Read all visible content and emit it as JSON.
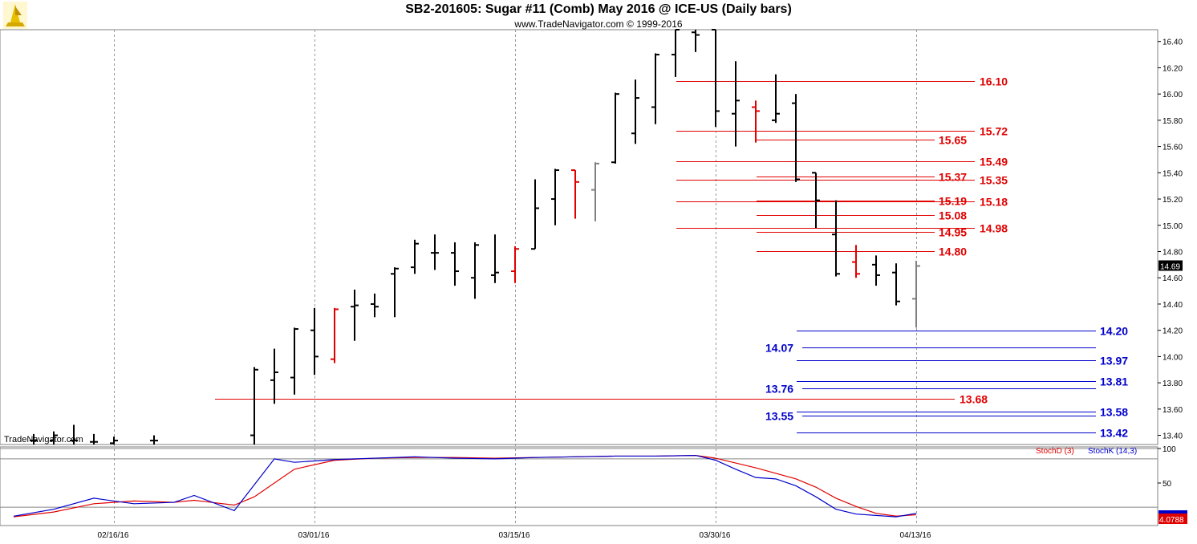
{
  "header": {
    "title": "SB2-201605:  Sugar #11 (Comb) May 2016 @ ICE-US  (Daily bars)",
    "subtitle": "www.TradeNavigator.com © 1999-2016",
    "watermark": "TradeNavigator.com"
  },
  "colors": {
    "up": "#000000",
    "red": "#e00000",
    "green": "#00cc00",
    "gray": "#808080",
    "resistance": "#e00000",
    "support": "#0000cc",
    "stochK": "#0000cc",
    "stochD": "#e00000"
  },
  "chart_data": {
    "type": "ohlc",
    "price_axis": {
      "ylim": [
        13.33,
        16.49
      ],
      "ticks": [
        "16.40",
        "16.20",
        "16.00",
        "15.80",
        "15.60",
        "15.40",
        "15.20",
        "15.00",
        "14.80",
        "14.60",
        "14.40",
        "14.20",
        "14.00",
        "13.80",
        "13.60",
        "13.40"
      ]
    },
    "date_axis": {
      "labels": [
        {
          "label": "02/16/16",
          "day": 5
        },
        {
          "label": "03/01/16",
          "day": 15
        },
        {
          "label": "03/15/16",
          "day": 25
        },
        {
          "label": "03/30/16",
          "day": 35
        },
        {
          "label": "04/13/16",
          "day": 45
        }
      ]
    },
    "last_price": "14.69",
    "bars": [
      {
        "d": 1,
        "o": 13.36,
        "h": 13.41,
        "l": 13.33,
        "c": 13.36,
        "color": "up"
      },
      {
        "d": 2,
        "o": 13.36,
        "h": 13.43,
        "l": 13.33,
        "c": 13.4,
        "color": "up"
      },
      {
        "d": 3,
        "o": 13.36,
        "h": 13.48,
        "l": 13.33,
        "c": 13.36,
        "color": "up"
      },
      {
        "d": 4,
        "o": 13.35,
        "h": 13.41,
        "l": 13.33,
        "c": 13.35,
        "color": "up"
      },
      {
        "d": 5,
        "o": 13.34,
        "h": 13.39,
        "l": 13.33,
        "c": 13.36,
        "color": "up"
      },
      {
        "d": 7,
        "o": 13.36,
        "h": 13.4,
        "l": 13.33,
        "c": 13.36,
        "color": "up"
      },
      {
        "d": 12,
        "o": 13.4,
        "h": 13.92,
        "l": 13.33,
        "c": 13.9,
        "color": "up"
      },
      {
        "d": 13,
        "o": 13.82,
        "h": 14.06,
        "l": 13.64,
        "c": 13.88,
        "color": "up"
      },
      {
        "d": 14,
        "o": 13.84,
        "h": 14.22,
        "l": 13.71,
        "c": 14.21,
        "color": "up"
      },
      {
        "d": 15,
        "o": 14.2,
        "h": 14.37,
        "l": 13.86,
        "c": 14.0,
        "color": "up"
      },
      {
        "d": 16,
        "o": 13.98,
        "h": 14.37,
        "l": 13.95,
        "c": 14.36,
        "color": "red"
      },
      {
        "d": 17,
        "o": 14.38,
        "h": 14.51,
        "l": 14.12,
        "c": 14.39,
        "color": "up"
      },
      {
        "d": 18,
        "o": 14.4,
        "h": 14.48,
        "l": 14.3,
        "c": 14.38,
        "color": "up"
      },
      {
        "d": 19,
        "o": 14.63,
        "h": 14.68,
        "l": 14.3,
        "c": 14.67,
        "color": "up"
      },
      {
        "d": 20,
        "o": 14.68,
        "h": 14.89,
        "l": 14.63,
        "c": 14.86,
        "color": "up"
      },
      {
        "d": 21,
        "o": 14.79,
        "h": 14.93,
        "l": 14.66,
        "c": 14.79,
        "color": "up"
      },
      {
        "d": 22,
        "o": 14.79,
        "h": 14.87,
        "l": 14.54,
        "c": 14.65,
        "color": "up"
      },
      {
        "d": 23,
        "o": 14.6,
        "h": 14.87,
        "l": 14.44,
        "c": 14.85,
        "color": "up"
      },
      {
        "d": 24,
        "o": 14.62,
        "h": 14.93,
        "l": 14.56,
        "c": 14.64,
        "color": "up"
      },
      {
        "d": 25,
        "o": 14.65,
        "h": 14.84,
        "l": 14.56,
        "c": 14.82,
        "color": "red"
      },
      {
        "d": 26,
        "o": 14.82,
        "h": 15.35,
        "l": 14.82,
        "c": 15.13,
        "color": "up"
      },
      {
        "d": 27,
        "o": 15.2,
        "h": 15.43,
        "l": 15.0,
        "c": 15.42,
        "color": "up"
      },
      {
        "d": 28,
        "o": 15.42,
        "h": 15.42,
        "l": 15.05,
        "c": 15.33,
        "color": "red"
      },
      {
        "d": 29,
        "o": 15.27,
        "h": 15.48,
        "l": 15.03,
        "c": 15.47,
        "color": "gray"
      },
      {
        "d": 30,
        "o": 15.48,
        "h": 16.01,
        "l": 15.47,
        "c": 16.0,
        "color": "up"
      },
      {
        "d": 31,
        "o": 15.7,
        "h": 16.11,
        "l": 15.62,
        "c": 15.97,
        "color": "up"
      },
      {
        "d": 32,
        "o": 15.9,
        "h": 16.31,
        "l": 15.77,
        "c": 16.3,
        "color": "up"
      },
      {
        "d": 33,
        "o": 16.3,
        "h": 16.49,
        "l": 16.13,
        "c": 16.49,
        "color": "up"
      },
      {
        "d": 34,
        "o": 16.47,
        "h": 16.49,
        "l": 16.32,
        "c": 16.45,
        "color": "up"
      },
      {
        "d": 35,
        "o": 16.49,
        "h": 16.49,
        "l": 15.75,
        "c": 15.87,
        "color": "up"
      },
      {
        "d": 36,
        "o": 15.85,
        "h": 16.25,
        "l": 15.6,
        "c": 15.95,
        "color": "up"
      },
      {
        "d": 37,
        "o": 15.9,
        "h": 15.95,
        "l": 15.63,
        "c": 15.87,
        "color": "red"
      },
      {
        "d": 38,
        "o": 15.8,
        "h": 16.15,
        "l": 15.78,
        "c": 15.85,
        "color": "up"
      },
      {
        "d": 39,
        "o": 15.93,
        "h": 16.0,
        "l": 15.33,
        "c": 15.35,
        "color": "up"
      },
      {
        "d": 40,
        "o": 15.4,
        "h": 15.4,
        "l": 14.98,
        "c": 15.19,
        "color": "up"
      },
      {
        "d": 41,
        "o": 14.93,
        "h": 15.19,
        "l": 14.61,
        "c": 14.63,
        "color": "up"
      },
      {
        "d": 42,
        "o": 14.72,
        "h": 14.85,
        "l": 14.6,
        "c": 14.63,
        "color": "red"
      },
      {
        "d": 43,
        "o": 14.7,
        "h": 14.77,
        "l": 14.54,
        "c": 14.62,
        "color": "up"
      },
      {
        "d": 44,
        "o": 14.64,
        "h": 14.71,
        "l": 14.39,
        "c": 14.42,
        "color": "up"
      },
      {
        "d": 45,
        "o": 14.44,
        "h": 14.73,
        "l": 14.22,
        "c": 14.69,
        "color": "gray"
      }
    ],
    "resistance_levels": [
      {
        "value": 16.1,
        "label": "16.10",
        "start_day": 34
      },
      {
        "value": 15.72,
        "label": "15.72",
        "start_day": 34
      },
      {
        "value": 15.65,
        "label": "15.65",
        "start_day": 38
      },
      {
        "value": 15.49,
        "label": "15.49",
        "start_day": 34
      },
      {
        "value": 15.37,
        "label": "15.37",
        "start_day": 38
      },
      {
        "value": 15.35,
        "label": "15.35",
        "start_day": 34
      },
      {
        "value": 15.19,
        "label": "15.19",
        "start_day": 38
      },
      {
        "value": 15.18,
        "label": "15.18",
        "start_day": 34
      },
      {
        "value": 15.08,
        "label": "15.08",
        "start_day": 38
      },
      {
        "value": 14.98,
        "label": "14.98",
        "start_day": 34
      },
      {
        "value": 14.95,
        "label": "14.95",
        "start_day": 38
      },
      {
        "value": 14.8,
        "label": "14.80",
        "start_day": 38
      },
      {
        "value": 13.68,
        "label": "13.68",
        "start_day": 10
      }
    ],
    "support_levels": [
      {
        "value": 14.2,
        "label": "14.20",
        "side": "right"
      },
      {
        "value": 14.07,
        "label": "14.07",
        "side": "left"
      },
      {
        "value": 13.97,
        "label": "13.97",
        "side": "right"
      },
      {
        "value": 13.81,
        "label": "13.81",
        "side": "right"
      },
      {
        "value": 13.76,
        "label": "13.76",
        "side": "left"
      },
      {
        "value": 13.58,
        "label": "13.58",
        "side": "right"
      },
      {
        "value": 13.55,
        "label": "13.55",
        "side": "left"
      },
      {
        "value": 13.42,
        "label": "13.42",
        "side": "right"
      }
    ],
    "stochastic": {
      "ylim": [
        0,
        100
      ],
      "ticks": [
        "100",
        "50"
      ],
      "legend_d": "StochD (3)",
      "legend_k": "StochK (14,3)",
      "last_d": "4.0788",
      "k": [
        [
          0,
          2
        ],
        [
          2,
          12
        ],
        [
          4,
          28
        ],
        [
          6,
          20
        ],
        [
          8,
          22
        ],
        [
          9,
          32
        ],
        [
          11,
          10
        ],
        [
          13,
          85
        ],
        [
          14,
          80
        ],
        [
          16,
          84
        ],
        [
          18,
          86
        ],
        [
          20,
          88
        ],
        [
          22,
          86
        ],
        [
          24,
          85
        ],
        [
          26,
          87
        ],
        [
          28,
          88
        ],
        [
          30,
          89
        ],
        [
          32,
          89
        ],
        [
          34,
          90
        ],
        [
          35,
          83
        ],
        [
          36,
          70
        ],
        [
          37,
          58
        ],
        [
          38,
          56
        ],
        [
          39,
          46
        ],
        [
          40,
          30
        ],
        [
          41,
          12
        ],
        [
          42,
          5
        ],
        [
          44,
          1
        ],
        [
          45,
          6
        ]
      ],
      "d": [
        [
          0,
          1
        ],
        [
          2,
          8
        ],
        [
          4,
          20
        ],
        [
          6,
          24
        ],
        [
          8,
          22
        ],
        [
          9,
          25
        ],
        [
          11,
          18
        ],
        [
          12,
          30
        ],
        [
          14,
          70
        ],
        [
          16,
          83
        ],
        [
          18,
          86
        ],
        [
          20,
          87
        ],
        [
          22,
          87
        ],
        [
          24,
          86
        ],
        [
          26,
          87
        ],
        [
          28,
          88
        ],
        [
          30,
          89
        ],
        [
          32,
          89
        ],
        [
          34,
          90
        ],
        [
          35,
          86
        ],
        [
          37,
          72
        ],
        [
          38,
          64
        ],
        [
          39,
          56
        ],
        [
          40,
          44
        ],
        [
          41,
          28
        ],
        [
          42,
          16
        ],
        [
          43,
          6
        ],
        [
          44,
          2
        ],
        [
          45,
          4
        ]
      ]
    }
  }
}
